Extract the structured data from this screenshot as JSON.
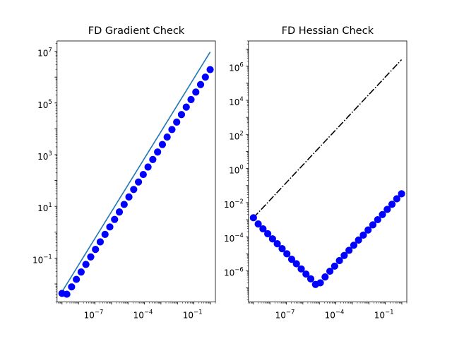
{
  "chart_data": [
    {
      "type": "line",
      "title": "FD Gradient Check",
      "xlabel": "",
      "ylabel": "",
      "xscale": "log",
      "yscale": "log",
      "xlim": [
        5e-10,
        2
      ],
      "ylim": [
        0.002,
        25000000.0
      ],
      "xticks": [
        {
          "mantissa": "10",
          "exponent": "−7",
          "value": 1e-07
        },
        {
          "mantissa": "10",
          "exponent": "−4",
          "value": 0.0001
        },
        {
          "mantissa": "10",
          "exponent": "−1",
          "value": 0.1
        }
      ],
      "yticks": [
        {
          "mantissa": "10",
          "exponent": "−1",
          "value": 0.1
        },
        {
          "mantissa": "10",
          "exponent": "1",
          "value": 10
        },
        {
          "mantissa": "10",
          "exponent": "3",
          "value": 1000
        },
        {
          "mantissa": "10",
          "exponent": "5",
          "value": 100000
        },
        {
          "mantissa": "10",
          "exponent": "7",
          "value": 10000000
        }
      ],
      "grid": false,
      "legend": "none",
      "series": [
        {
          "style": "markers",
          "color": "#0000ff",
          "x": [
            1e-09,
            1.95e-09,
            3.8e-09,
            7.4e-09,
            1.44e-08,
            2.8e-08,
            5.5e-08,
            1.07e-07,
            2.08e-07,
            4.05e-07,
            7.9e-07,
            1.54e-06,
            3e-06,
            5.85e-06,
            1.14e-05,
            2.22e-05,
            4.33e-05,
            8.43e-05,
            0.000164,
            0.00032,
            0.000624,
            0.00122,
            0.00237,
            0.00462,
            0.009,
            0.0175,
            0.0342,
            0.0666,
            0.13,
            0.253,
            0.493,
            0.96
          ],
          "y": [
            0.0043,
            0.004,
            0.0077,
            0.015,
            0.029,
            0.057,
            0.111,
            0.217,
            0.422,
            0.823,
            1.6,
            3.12,
            6.08,
            11.9,
            23.1,
            45,
            87.7,
            171,
            333,
            649,
            1265,
            2465,
            4800,
            9360,
            18200,
            35500,
            69300,
            135000,
            263000,
            513000,
            1000000,
            1950000
          ]
        },
        {
          "style": "line",
          "color": "#1f77b4",
          "x": [
            1e-09,
            0.96
          ],
          "y": [
            0.005,
            9300000
          ]
        }
      ]
    },
    {
      "type": "line",
      "title": "FD Hessian Check",
      "xlabel": "",
      "ylabel": "",
      "xscale": "log",
      "yscale": "log",
      "xlim": [
        5e-10,
        2
      ],
      "ylim": [
        1.5e-08,
        30000000.0
      ],
      "xticks": [
        {
          "mantissa": "10",
          "exponent": "−7",
          "value": 1e-07
        },
        {
          "mantissa": "10",
          "exponent": "−4",
          "value": 0.0001
        },
        {
          "mantissa": "10",
          "exponent": "−1",
          "value": 0.1
        }
      ],
      "yticks": [
        {
          "mantissa": "10",
          "exponent": "−6",
          "value": 1e-06
        },
        {
          "mantissa": "10",
          "exponent": "−4",
          "value": 0.0001
        },
        {
          "mantissa": "10",
          "exponent": "−2",
          "value": 0.01
        },
        {
          "mantissa": "10",
          "exponent": "0",
          "value": 1
        },
        {
          "mantissa": "10",
          "exponent": "2",
          "value": 100
        },
        {
          "mantissa": "10",
          "exponent": "4",
          "value": 10000
        },
        {
          "mantissa": "10",
          "exponent": "6",
          "value": 1000000
        }
      ],
      "grid": false,
      "legend": "none",
      "series": [
        {
          "style": "markers",
          "color": "#0000ff",
          "x": [
            1e-09,
            1.95e-09,
            3.8e-09,
            7.4e-09,
            1.44e-08,
            2.8e-08,
            5.5e-08,
            1.07e-07,
            2.08e-07,
            4.05e-07,
            7.9e-07,
            1.54e-06,
            3e-06,
            5.85e-06,
            1.14e-05,
            2.22e-05,
            4.33e-05,
            8.43e-05,
            0.000164,
            0.00032,
            0.000624,
            0.00122,
            0.00237,
            0.00462,
            0.009,
            0.0175,
            0.0342,
            0.0666,
            0.13,
            0.253,
            0.493,
            0.96
          ],
          "y": [
            0.0013,
            0.00056,
            0.00029,
            0.00015,
            7.5e-05,
            3.9e-05,
            2e-05,
            1e-05,
            4.8e-06,
            2.6e-06,
            1.3e-06,
            6.5e-07,
            3.4e-07,
            1.6e-07,
            2e-07,
            4.4e-07,
            9.5e-07,
            1.9e-06,
            4e-06,
            8e-06,
            1.6e-05,
            3.2e-05,
            6.4e-05,
            0.000125,
            0.00025,
            0.0005,
            0.001,
            0.002,
            0.004,
            0.008,
            0.0168,
            0.033
          ]
        },
        {
          "style": "dashdot-line",
          "color": "#000000",
          "x": [
            1e-09,
            0.96
          ],
          "y": [
            0.0013,
            2400000
          ]
        }
      ]
    }
  ]
}
